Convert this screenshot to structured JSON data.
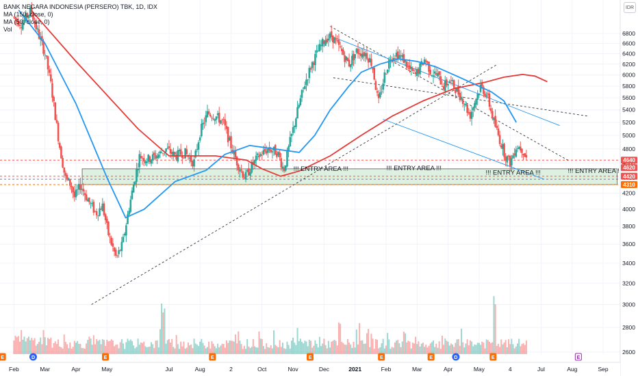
{
  "legend": {
    "title": "BANK NEGARA INDONESIA (PERSERO) TBK, 1D, IDX",
    "ma150": "MA (150, close, 0)",
    "ma50": "MA (50, close, 0)",
    "vol": "Vol"
  },
  "currency": "IDR",
  "chart_data": {
    "type": "candlestick",
    "title": "BANK NEGARA INDONESIA (PERSERO) TBK, 1D, IDX",
    "y_axis": {
      "scale": "log",
      "ticks": [
        2600,
        2800,
        3000,
        3200,
        3400,
        3600,
        3800,
        4000,
        4200,
        4400,
        4600,
        4800,
        5000,
        5200,
        5400,
        5600,
        5800,
        6000,
        6200,
        6400,
        6600,
        6800
      ],
      "range": [
        2520,
        7250
      ],
      "position": "right",
      "unit": "IDR"
    },
    "x_axis": {
      "labels": [
        "Feb",
        "Mar",
        "Apr",
        "May",
        "Jul",
        "Aug",
        "2",
        "Oct",
        "Nov",
        "Dec",
        "2021",
        "Feb",
        "Mar",
        "Apr",
        "May",
        "4",
        "Jul",
        "Aug",
        "Sep"
      ],
      "label_months": [
        1,
        2,
        3,
        4,
        6,
        7,
        8,
        9,
        10,
        11,
        12,
        13,
        14,
        15,
        16,
        17,
        18,
        19,
        20
      ],
      "range_months": [
        0.55,
        20.55
      ]
    },
    "price_path": [
      [
        1.0,
        7150
      ],
      [
        1.3,
        7000
      ],
      [
        1.6,
        7300
      ],
      [
        1.75,
        6950
      ],
      [
        2.05,
        6400
      ],
      [
        2.25,
        5800
      ],
      [
        2.5,
        4900
      ],
      [
        2.7,
        4400
      ],
      [
        2.9,
        4300
      ],
      [
        3.0,
        4150
      ],
      [
        3.2,
        4300
      ],
      [
        3.45,
        4100
      ],
      [
        3.7,
        3950
      ],
      [
        3.9,
        4050
      ],
      [
        4.1,
        3700
      ],
      [
        4.35,
        3450
      ],
      [
        4.55,
        3600
      ],
      [
        4.75,
        4000
      ],
      [
        4.9,
        4300
      ],
      [
        5.1,
        4700
      ],
      [
        5.35,
        4650
      ],
      [
        5.65,
        4700
      ],
      [
        5.95,
        4800
      ],
      [
        6.25,
        4700
      ],
      [
        6.55,
        4750
      ],
      [
        6.85,
        4600
      ],
      [
        7.05,
        5050
      ],
      [
        7.3,
        5350
      ],
      [
        7.55,
        5300
      ],
      [
        7.8,
        5200
      ],
      [
        8.0,
        4900
      ],
      [
        8.25,
        4600
      ],
      [
        8.5,
        4400
      ],
      [
        8.7,
        4550
      ],
      [
        8.95,
        4700
      ],
      [
        9.25,
        4800
      ],
      [
        9.55,
        4750
      ],
      [
        9.75,
        4500
      ],
      [
        9.95,
        4900
      ],
      [
        10.15,
        5300
      ],
      [
        10.4,
        5800
      ],
      [
        10.65,
        6200
      ],
      [
        10.9,
        6500
      ],
      [
        11.1,
        6700
      ],
      [
        11.3,
        6750
      ],
      [
        11.6,
        6450
      ],
      [
        11.85,
        6200
      ],
      [
        12.1,
        6450
      ],
      [
        12.4,
        6400
      ],
      [
        12.6,
        6200
      ],
      [
        12.8,
        5500
      ],
      [
        13.0,
        6000
      ],
      [
        13.2,
        6350
      ],
      [
        13.4,
        6400
      ],
      [
        13.6,
        6300
      ],
      [
        13.8,
        6100
      ],
      [
        14.0,
        6000
      ],
      [
        14.3,
        6300
      ],
      [
        14.5,
        6050
      ],
      [
        14.7,
        6000
      ],
      [
        14.9,
        5800
      ],
      [
        15.1,
        5900
      ],
      [
        15.3,
        5750
      ],
      [
        15.55,
        5550
      ],
      [
        15.75,
        5300
      ],
      [
        15.95,
        5600
      ],
      [
        16.1,
        5800
      ],
      [
        16.3,
        5650
      ],
      [
        16.5,
        5250
      ],
      [
        16.7,
        4950
      ],
      [
        16.9,
        4700
      ],
      [
        17.05,
        4600
      ],
      [
        17.25,
        4850
      ],
      [
        17.45,
        4800
      ],
      [
        17.55,
        4680
      ]
    ],
    "series": [
      {
        "name": "MA (150, close, 0)",
        "color": "#e53935",
        "values": [
          [
            1.55,
            7300
          ],
          [
            3.0,
            6250
          ],
          [
            5.0,
            5100
          ],
          [
            6.0,
            4700
          ],
          [
            7.5,
            4700
          ],
          [
            8.5,
            4640
          ],
          [
            9.0,
            4520
          ],
          [
            9.6,
            4420
          ],
          [
            10.2,
            4490
          ],
          [
            11.2,
            4700
          ],
          [
            12.2,
            5000
          ],
          [
            13.2,
            5300
          ],
          [
            14.2,
            5550
          ],
          [
            15.2,
            5760
          ],
          [
            16.2,
            5870
          ],
          [
            16.8,
            5960
          ],
          [
            17.4,
            6010
          ],
          [
            17.8,
            5980
          ],
          [
            18.2,
            5880
          ]
        ]
      },
      {
        "name": "MA (50, close, 0)",
        "color": "#2196f3",
        "values": [
          [
            1.15,
            7300
          ],
          [
            2.0,
            6600
          ],
          [
            3.0,
            5500
          ],
          [
            4.0,
            4400
          ],
          [
            4.6,
            3900
          ],
          [
            5.2,
            4000
          ],
          [
            6.2,
            4350
          ],
          [
            7.2,
            4500
          ],
          [
            7.8,
            4720
          ],
          [
            8.6,
            4850
          ],
          [
            9.4,
            4800
          ],
          [
            10.2,
            4750
          ],
          [
            10.7,
            5000
          ],
          [
            11.2,
            5400
          ],
          [
            11.8,
            5800
          ],
          [
            12.2,
            6050
          ],
          [
            12.8,
            6200
          ],
          [
            13.4,
            6300
          ],
          [
            14.0,
            6250
          ],
          [
            14.6,
            6150
          ],
          [
            15.2,
            6000
          ],
          [
            15.8,
            5850
          ],
          [
            16.4,
            5700
          ],
          [
            16.8,
            5550
          ],
          [
            17.2,
            5200
          ]
        ]
      }
    ],
    "volume": {
      "scale_note": "relative",
      "peaks": [
        [
          5.8,
          0.85
        ],
        [
          11.5,
          0.55
        ],
        [
          12.4,
          0.45
        ],
        [
          13.6,
          0.35
        ],
        [
          16.5,
          0.9
        ]
      ]
    },
    "drawings": [
      {
        "type": "dashed-trendline",
        "from": [
          3.5,
          3000
        ],
        "to": [
          16.6,
          6200
        ]
      },
      {
        "type": "dashed-trendline",
        "from": [
          11.2,
          6950
        ],
        "to": [
          18.9,
          4630
        ]
      },
      {
        "type": "dashed-trendline",
        "from": [
          11.3,
          5950
        ],
        "to": [
          19.5,
          5300
        ]
      },
      {
        "type": "trendline",
        "from": [
          11.2,
          6750
        ],
        "to": [
          18.6,
          5150
        ]
      },
      {
        "type": "trendline",
        "from": [
          12.9,
          5250
        ],
        "to": [
          18.1,
          4380
        ]
      }
    ],
    "entry_zone": {
      "low": 4310,
      "high": 4520,
      "from": 3.2,
      "to": 20.45,
      "color": "#c8e6c9"
    },
    "horizontal_levels": [
      {
        "value": 4640,
        "color": "#ef5350",
        "style": "dashed"
      },
      {
        "value": 4420,
        "color": "#ef5350",
        "style": "dashed"
      },
      {
        "value": 4310,
        "color": "#ff6d00",
        "style": "dashed"
      },
      {
        "value": 4380,
        "color": "#787b86",
        "style": "dashed"
      }
    ],
    "price_labels": [
      {
        "value": 4640,
        "text": "4640",
        "bg": "#ef5350",
        "fg": "#ffffff"
      },
      {
        "value": 4620,
        "text": "4620",
        "bg": "#ef5350",
        "fg": "#ffffff"
      },
      {
        "value": 4420,
        "text": "4420",
        "bg": "#ef5350",
        "fg": "#ffffff"
      },
      {
        "value": 4310,
        "text": "4310",
        "bg": "#ff6d00",
        "fg": "#ffffff"
      }
    ],
    "annotations": [
      {
        "text": "!!! ENTRY AREA !!!",
        "x": 10.9,
        "y": 4490
      },
      {
        "text": "!!! ENTRY AREA !!!",
        "x": 13.9,
        "y": 4500
      },
      {
        "text": "!!! ENTRY AREA !!!",
        "x": 17.1,
        "y": 4440
      },
      {
        "text": "!!! ENTRY AREA !!!",
        "x": 19.75,
        "y": 4465
      }
    ],
    "event_markers": [
      {
        "x": 0.63,
        "text": "E",
        "kind": "earnings"
      },
      {
        "x": 1.62,
        "text": "D",
        "kind": "dividend"
      },
      {
        "x": 3.95,
        "text": "E",
        "kind": "earnings"
      },
      {
        "x": 7.4,
        "text": "E",
        "kind": "earnings"
      },
      {
        "x": 10.55,
        "text": "E",
        "kind": "earnings"
      },
      {
        "x": 12.85,
        "text": "E",
        "kind": "earnings"
      },
      {
        "x": 14.45,
        "text": "E",
        "kind": "earnings"
      },
      {
        "x": 15.25,
        "text": "D",
        "kind": "dividend"
      },
      {
        "x": 16.45,
        "text": "E",
        "kind": "earnings"
      },
      {
        "x": 19.2,
        "text": "E",
        "kind": "earnings-upcoming"
      }
    ],
    "colors": {
      "up": "#26a69a",
      "down": "#ef5350"
    },
    "grid": true
  }
}
